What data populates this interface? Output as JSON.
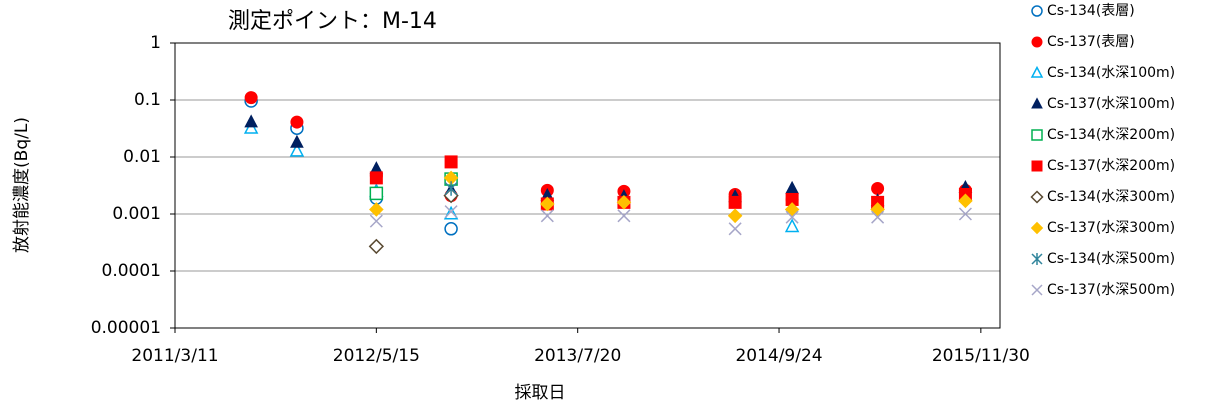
{
  "chart_data": {
    "type": "scatter",
    "title": "測定ポイント：M-14",
    "x_label": "採取日",
    "y_label": "放射能濃度(Bq/L)",
    "log_y": true,
    "grid": true,
    "legend": "right",
    "xlim": [
      "2011/3/11",
      "2016/1/10"
    ],
    "xticks": [
      "2011/3/11",
      "2012/5/15",
      "2013/7/20",
      "2014/9/24",
      "2015/11/30"
    ],
    "ylim": [
      1e-05,
      1
    ],
    "yticks": [
      1,
      0.1,
      0.01,
      0.001,
      0.0001,
      1e-05
    ],
    "x": [
      "2011/8/21",
      "2011/11/27",
      "2012/5/15",
      "2012/10/22",
      "2013/5/16",
      "2013/10/27",
      "2014/6/22",
      "2014/10/22",
      "2015/4/23",
      "2015/10/28"
    ],
    "series": [
      {
        "name": "Cs-134(表層)",
        "color": "#0070c0",
        "marker": "circle-open",
        "values": [
          0.096,
          0.032,
          0.0019,
          0.00055,
          null,
          null,
          null,
          null,
          null,
          null
        ]
      },
      {
        "name": "Cs-137(表層)",
        "color": "#ff0000",
        "marker": "circle",
        "values": [
          0.11,
          0.041,
          0.0047,
          0.0021,
          0.0026,
          0.0025,
          0.0022,
          0.0018,
          0.0028,
          0.0026
        ]
      },
      {
        "name": "Cs-134(水深100m)",
        "color": "#00b0f0",
        "marker": "triangle-open",
        "values": [
          0.032,
          0.0127,
          0.0025,
          0.001,
          null,
          null,
          null,
          0.0006,
          null,
          null
        ]
      },
      {
        "name": "Cs-137(水深100m)",
        "color": "#002060",
        "marker": "triangle",
        "values": [
          0.041,
          0.018,
          0.0062,
          0.0026,
          0.0021,
          0.002,
          0.002,
          0.0028,
          0.0017,
          0.0029
        ]
      },
      {
        "name": "Cs-134(水深200m)",
        "color": "#00b050",
        "marker": "square-open",
        "values": [
          null,
          null,
          0.0023,
          0.0041,
          null,
          null,
          null,
          null,
          null,
          null
        ]
      },
      {
        "name": "Cs-137(水深200m)",
        "color": "#ff0000",
        "marker": "square",
        "values": [
          null,
          null,
          0.0043,
          0.0082,
          0.0015,
          0.0016,
          0.0016,
          0.0018,
          0.0016,
          0.0022
        ]
      },
      {
        "name": "Cs-134(水深300m)",
        "color": "#5a4a32",
        "marker": "diamond-open",
        "values": [
          null,
          null,
          0.00027,
          0.0021,
          null,
          null,
          null,
          null,
          null,
          null
        ]
      },
      {
        "name": "Cs-137(水深300m)",
        "color": "#ffc000",
        "marker": "diamond",
        "values": [
          null,
          null,
          0.0012,
          0.0043,
          0.0015,
          0.0016,
          0.00093,
          0.0012,
          0.0012,
          0.0017
        ]
      },
      {
        "name": "Cs-134(水深500m)",
        "color": "#31859c",
        "marker": "asterisk",
        "values": [
          null,
          null,
          null,
          0.0028,
          null,
          null,
          null,
          null,
          null,
          null
        ]
      },
      {
        "name": "Cs-137(水深500m)",
        "color": "#a6a6c8",
        "marker": "cross",
        "values": [
          null,
          null,
          0.00075,
          0.0011,
          0.00093,
          0.00093,
          0.00055,
          0.00088,
          0.00088,
          0.001
        ]
      }
    ]
  }
}
